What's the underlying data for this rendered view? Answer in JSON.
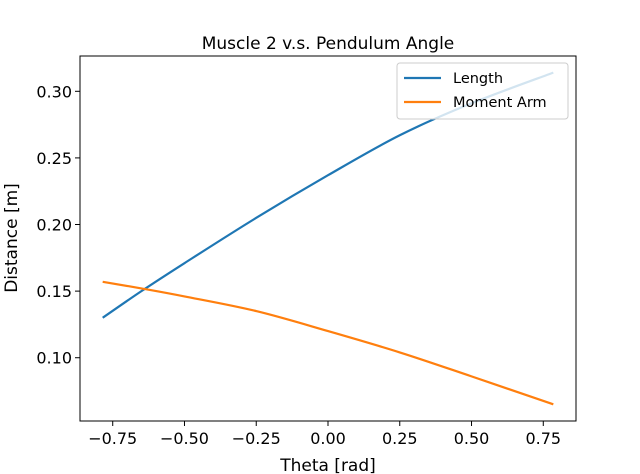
{
  "chart_data": {
    "type": "line",
    "title": "Muscle 2 v.s. Pendulum Angle",
    "xlabel": "Theta [rad]",
    "ylabel": "Distance [m]",
    "xlim": [
      -0.864,
      0.864
    ],
    "ylim": [
      0.0525,
      0.3265
    ],
    "xticks": [
      -0.75,
      -0.5,
      -0.25,
      0.0,
      0.25,
      0.5,
      0.75
    ],
    "xtick_labels": [
      "−0.75",
      "−0.50",
      "−0.25",
      "0.00",
      "0.25",
      "0.50",
      "0.75"
    ],
    "yticks": [
      0.1,
      0.15,
      0.2,
      0.25,
      0.3
    ],
    "ytick_labels": [
      "0.10",
      "0.15",
      "0.20",
      "0.25",
      "0.30"
    ],
    "grid": false,
    "legend_position": "top-right",
    "series": [
      {
        "name": "Length",
        "color": "#1f77b4",
        "x": [
          -0.785,
          -0.65,
          -0.5,
          -0.25,
          0.0,
          0.25,
          0.5,
          0.785
        ],
        "y": [
          0.13,
          0.15,
          0.171,
          0.205,
          0.237,
          0.267,
          0.291,
          0.314
        ]
      },
      {
        "name": "Moment Arm",
        "color": "#ff7f0e",
        "x": [
          -0.785,
          -0.65,
          -0.5,
          -0.25,
          0.0,
          0.25,
          0.5,
          0.785
        ],
        "y": [
          0.157,
          0.152,
          0.146,
          0.135,
          0.12,
          0.104,
          0.086,
          0.065
        ]
      }
    ]
  }
}
